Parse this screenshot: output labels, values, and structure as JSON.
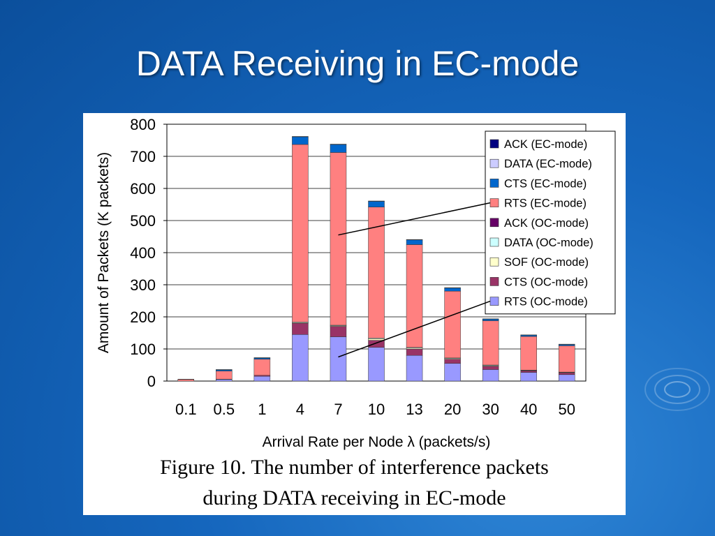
{
  "slide": {
    "title": "DATA Receiving in EC-mode",
    "caption_line1": "Figure 10. The number of interference packets",
    "caption_line2": "during DATA receiving in EC-mode"
  },
  "chart_data": {
    "type": "bar",
    "stacked": true,
    "title": "",
    "xlabel": "Arrival Rate per Node  λ  (packets/s)",
    "ylabel": "Amount of Packets (K packets)",
    "ylim": [
      0,
      800
    ],
    "yticks": [
      0,
      100,
      200,
      300,
      400,
      500,
      600,
      700,
      800
    ],
    "grid": true,
    "legend_position": "top-right",
    "categories": [
      "0.1",
      "0.5",
      "1",
      "4",
      "7",
      "10",
      "13",
      "20",
      "30",
      "40",
      "50"
    ],
    "series": [
      {
        "name": "RTS (OC-mode)",
        "color": "#9999ff",
        "values": [
          0,
          5,
          15,
          145,
          138,
          105,
          80,
          55,
          36,
          27,
          20
        ]
      },
      {
        "name": "CTS (OC-mode)",
        "color": "#993366",
        "values": [
          0,
          1,
          3,
          35,
          32,
          22,
          20,
          13,
          10,
          5,
          6
        ]
      },
      {
        "name": "SOF (OC-mode)",
        "color": "#ffffcc",
        "values": [
          0,
          0,
          0,
          2,
          2,
          5,
          3,
          2,
          2,
          1,
          1
        ]
      },
      {
        "name": "DATA (OC-mode)",
        "color": "#ccffff",
        "values": [
          0,
          0,
          0,
          2,
          2,
          2,
          2,
          2,
          2,
          1,
          1
        ]
      },
      {
        "name": "ACK (OC-mode)",
        "color": "#660066",
        "values": [
          0,
          0,
          0,
          0,
          0,
          0,
          0,
          0,
          0,
          0,
          0
        ]
      },
      {
        "name": "RTS (EC-mode)",
        "color": "#ff8080",
        "values": [
          5,
          25,
          50,
          553,
          538,
          408,
          320,
          208,
          138,
          105,
          82
        ]
      },
      {
        "name": "CTS (EC-mode)",
        "color": "#0066cc",
        "values": [
          1,
          4,
          4,
          24,
          25,
          18,
          15,
          10,
          5,
          4,
          4
        ]
      },
      {
        "name": "DATA (EC-mode)",
        "color": "#ccccff",
        "values": [
          0,
          1,
          1,
          1,
          1,
          1,
          1,
          1,
          1,
          1,
          1
        ]
      },
      {
        "name": "ACK (EC-mode)",
        "color": "#000080",
        "values": [
          0,
          0,
          0,
          0,
          0,
          0,
          0,
          0,
          0,
          0,
          0
        ]
      }
    ]
  }
}
